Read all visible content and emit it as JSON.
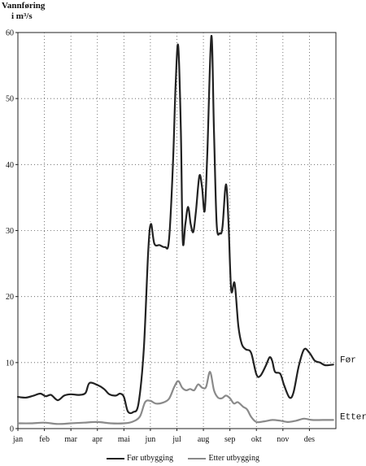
{
  "chart_data": {
    "type": "line",
    "ylabel_line1": "Vannføring",
    "ylabel_line2": "i m³/s",
    "xlabel": "",
    "ylim": [
      0,
      60
    ],
    "yticks": [
      0,
      10,
      20,
      30,
      40,
      50,
      60
    ],
    "grid": true,
    "months": [
      "jan",
      "feb",
      "mar",
      "apr",
      "mai",
      "jun",
      "jul",
      "aug",
      "sep",
      "okt",
      "nov",
      "des"
    ],
    "x_unit": "month (0 = start of jan, 12 = end of des)",
    "series": [
      {
        "name": "Før utbygging",
        "end_label": "Før",
        "color": "#222222",
        "points": [
          [
            0.0,
            4.8
          ],
          [
            0.3,
            4.7
          ],
          [
            0.6,
            5.0
          ],
          [
            0.85,
            5.3
          ],
          [
            1.05,
            4.9
          ],
          [
            1.25,
            5.1
          ],
          [
            1.5,
            4.3
          ],
          [
            1.75,
            5.0
          ],
          [
            2.0,
            5.2
          ],
          [
            2.3,
            5.1
          ],
          [
            2.55,
            5.4
          ],
          [
            2.7,
            6.9
          ],
          [
            3.0,
            6.6
          ],
          [
            3.25,
            6.0
          ],
          [
            3.45,
            5.2
          ],
          [
            3.7,
            5.0
          ],
          [
            3.85,
            5.3
          ],
          [
            4.0,
            4.8
          ],
          [
            4.15,
            2.6
          ],
          [
            4.35,
            2.5
          ],
          [
            4.55,
            3.8
          ],
          [
            4.75,
            12.0
          ],
          [
            4.92,
            27.0
          ],
          [
            5.02,
            31.0
          ],
          [
            5.15,
            28.0
          ],
          [
            5.35,
            27.8
          ],
          [
            5.55,
            27.5
          ],
          [
            5.7,
            28.5
          ],
          [
            5.85,
            40.0
          ],
          [
            5.95,
            52.0
          ],
          [
            6.05,
            58.0
          ],
          [
            6.15,
            45.0
          ],
          [
            6.22,
            28.5
          ],
          [
            6.32,
            31.0
          ],
          [
            6.42,
            33.6
          ],
          [
            6.52,
            31.0
          ],
          [
            6.62,
            29.8
          ],
          [
            6.72,
            33.0
          ],
          [
            6.85,
            38.3
          ],
          [
            6.95,
            36.5
          ],
          [
            7.05,
            33.0
          ],
          [
            7.15,
            42.0
          ],
          [
            7.3,
            59.5
          ],
          [
            7.4,
            45.0
          ],
          [
            7.5,
            31.0
          ],
          [
            7.62,
            29.6
          ],
          [
            7.72,
            30.5
          ],
          [
            7.85,
            37.0
          ],
          [
            7.95,
            31.0
          ],
          [
            8.05,
            21.0
          ],
          [
            8.18,
            22.0
          ],
          [
            8.32,
            15.5
          ],
          [
            8.45,
            12.8
          ],
          [
            8.6,
            12.0
          ],
          [
            8.8,
            11.5
          ],
          [
            9.0,
            8.2
          ],
          [
            9.15,
            8.0
          ],
          [
            9.35,
            9.5
          ],
          [
            9.5,
            10.8
          ],
          [
            9.6,
            10.2
          ],
          [
            9.7,
            8.6
          ],
          [
            9.9,
            8.3
          ],
          [
            10.05,
            6.5
          ],
          [
            10.25,
            4.7
          ],
          [
            10.4,
            5.5
          ],
          [
            10.6,
            9.5
          ],
          [
            10.8,
            12.0
          ],
          [
            11.0,
            11.5
          ],
          [
            11.2,
            10.3
          ],
          [
            11.4,
            10.0
          ],
          [
            11.6,
            9.6
          ],
          [
            11.9,
            9.7
          ]
        ]
      },
      {
        "name": "Etter utbygging",
        "end_label": "Etter",
        "color": "#8a8a8a",
        "points": [
          [
            0.0,
            0.8
          ],
          [
            0.5,
            0.8
          ],
          [
            1.0,
            0.9
          ],
          [
            1.5,
            0.7
          ],
          [
            2.0,
            0.8
          ],
          [
            2.5,
            0.9
          ],
          [
            3.0,
            1.0
          ],
          [
            3.5,
            0.8
          ],
          [
            4.0,
            0.8
          ],
          [
            4.3,
            1.0
          ],
          [
            4.6,
            1.8
          ],
          [
            4.8,
            4.0
          ],
          [
            5.0,
            4.2
          ],
          [
            5.2,
            3.8
          ],
          [
            5.45,
            3.9
          ],
          [
            5.7,
            4.5
          ],
          [
            5.9,
            6.3
          ],
          [
            6.05,
            7.2
          ],
          [
            6.2,
            6.2
          ],
          [
            6.35,
            5.8
          ],
          [
            6.5,
            6.0
          ],
          [
            6.65,
            5.8
          ],
          [
            6.8,
            6.7
          ],
          [
            6.95,
            6.2
          ],
          [
            7.1,
            6.3
          ],
          [
            7.25,
            8.6
          ],
          [
            7.4,
            5.8
          ],
          [
            7.55,
            4.7
          ],
          [
            7.7,
            4.6
          ],
          [
            7.85,
            5.0
          ],
          [
            8.0,
            4.6
          ],
          [
            8.15,
            3.8
          ],
          [
            8.3,
            4.0
          ],
          [
            8.5,
            3.3
          ],
          [
            8.65,
            2.9
          ],
          [
            8.8,
            1.8
          ],
          [
            9.0,
            1.0
          ],
          [
            9.3,
            1.1
          ],
          [
            9.6,
            1.3
          ],
          [
            9.9,
            1.2
          ],
          [
            10.2,
            1.0
          ],
          [
            10.5,
            1.2
          ],
          [
            10.8,
            1.5
          ],
          [
            11.1,
            1.3
          ],
          [
            11.5,
            1.3
          ],
          [
            11.9,
            1.3
          ]
        ]
      }
    ],
    "legend": [
      "Før utbygging",
      "Etter utbygging"
    ]
  }
}
